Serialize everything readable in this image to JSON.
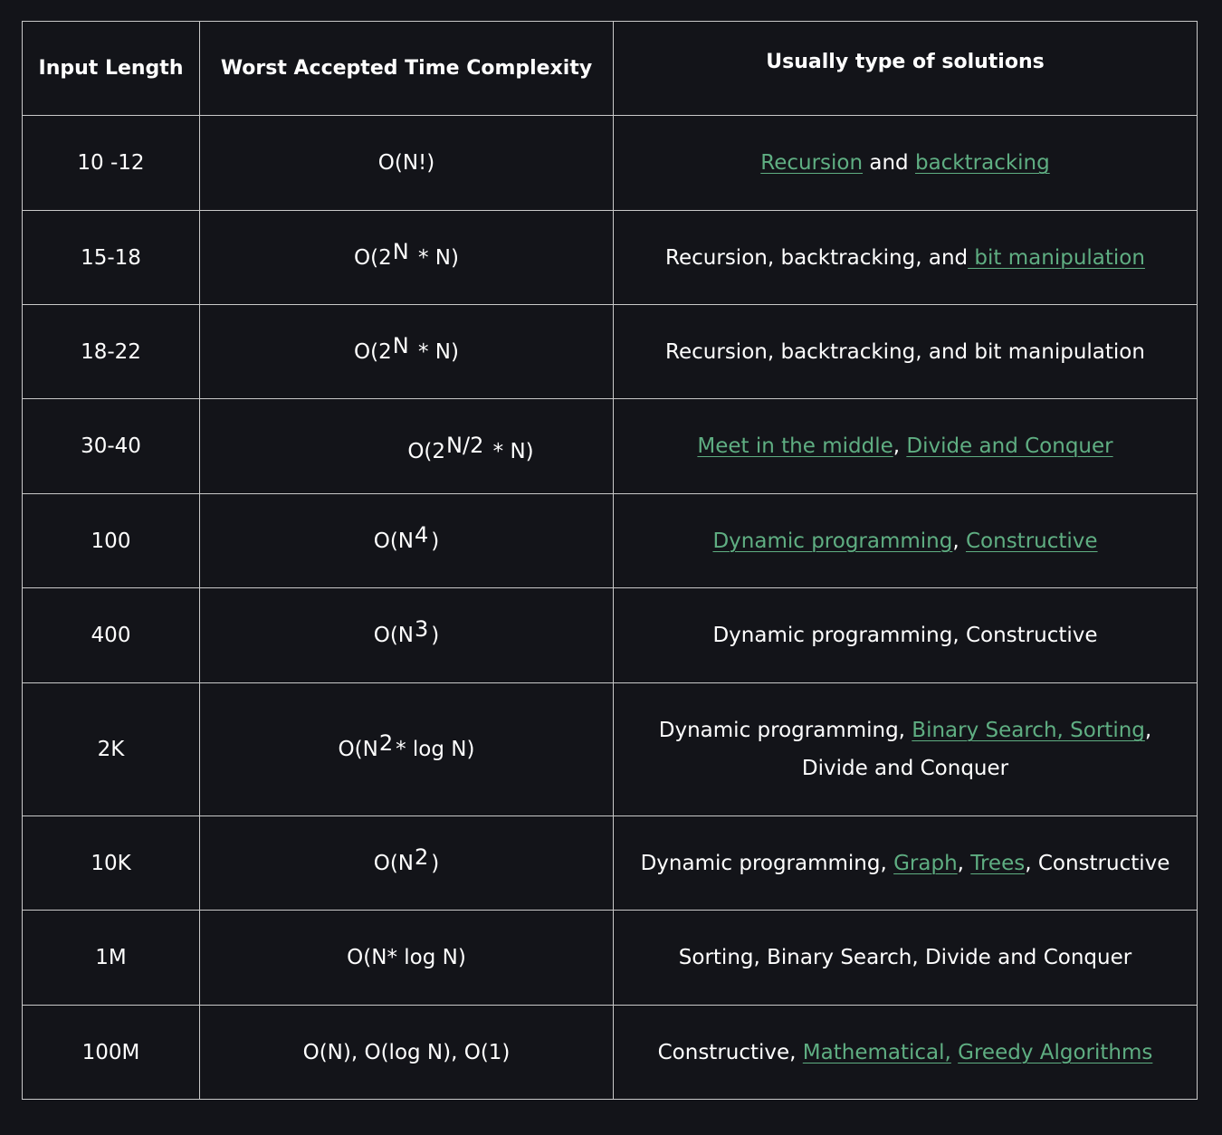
{
  "headers": [
    "Input Length",
    "Worst Accepted Time Complexity",
    "Usually type of solutions"
  ],
  "rows": [
    {
      "input": "10 -12",
      "complexity_base": "O(N!)",
      "complexity_sup": "",
      "complexity_tail": "",
      "solutions": [
        {
          "text": "Recursion",
          "link": true
        },
        {
          "text": " and ",
          "link": false
        },
        {
          "text": "backtracking",
          "link": true
        }
      ]
    },
    {
      "input": "15-18",
      "complexity_base": "O(2",
      "complexity_sup": "N",
      "complexity_tail": " * N)",
      "solutions": [
        {
          "text": "Recursion, backtracking, and",
          "link": false
        },
        {
          "text": " bit manipulation",
          "link": true
        }
      ]
    },
    {
      "input": "18-22",
      "complexity_base": "O(2",
      "complexity_sup": "N",
      "complexity_tail": " * N)",
      "solutions": [
        {
          "text": "Recursion, backtracking, and bit manipulation",
          "link": false
        }
      ]
    },
    {
      "input": "30-40",
      "complexity_base": "O(2",
      "complexity_sup": "N/2",
      "complexity_tail": " * N)",
      "solutions": [
        {
          "text": "Meet in the middle",
          "link": true
        },
        {
          "text": ", ",
          "link": false
        },
        {
          "text": "Divide and Conquer",
          "link": true
        }
      ]
    },
    {
      "input": "100",
      "complexity_base": "O(N",
      "complexity_sup": "4",
      "complexity_tail": ")",
      "solutions": [
        {
          "text": "Dynamic programming",
          "link": true
        },
        {
          "text": ", ",
          "link": false
        },
        {
          "text": "Constructive",
          "link": true
        }
      ]
    },
    {
      "input": "400",
      "complexity_base": "O(N",
      "complexity_sup": "3",
      "complexity_tail": ")",
      "solutions": [
        {
          "text": "Dynamic programming, Constructive",
          "link": false
        }
      ]
    },
    {
      "input": "2K",
      "complexity_base": "O(N",
      "complexity_sup": "2",
      "complexity_tail": "* log N)",
      "solutions": [
        {
          "text": "Dynamic programming, ",
          "link": false
        },
        {
          "text": "Binary Search",
          "link": true
        },
        {
          "text": ", Sorting",
          "link": true
        },
        {
          "text": ", Divide and Conquer",
          "link": false
        }
      ]
    },
    {
      "input": "10K",
      "complexity_base": "O(N",
      "complexity_sup": "2",
      "complexity_tail": ")",
      "solutions": [
        {
          "text": "Dynamic programming, ",
          "link": false
        },
        {
          "text": "Graph",
          "link": true
        },
        {
          "text": ", ",
          "link": false
        },
        {
          "text": "Trees",
          "link": true
        },
        {
          "text": ", Constructive",
          "link": false
        }
      ]
    },
    {
      "input": "1M",
      "complexity_base": "O(N* log N)",
      "complexity_sup": "",
      "complexity_tail": "",
      "solutions": [
        {
          "text": "Sorting, Binary Search, Divide and Conquer",
          "link": false
        }
      ]
    },
    {
      "input": "100M",
      "complexity_base": "O(N), O(log N), O(1)",
      "complexity_sup": "",
      "complexity_tail": "",
      "solutions": [
        {
          "text": "Constructive, ",
          "link": false
        },
        {
          "text": "Mathematical,",
          "link": true
        },
        {
          "text": " ",
          "link": false
        },
        {
          "text": "Greedy Algorithms",
          "link": true
        }
      ]
    }
  ],
  "colors": {
    "background": "#131419",
    "text": "#ffffff",
    "link": "#5fae82",
    "border": "#c9c9c9"
  }
}
